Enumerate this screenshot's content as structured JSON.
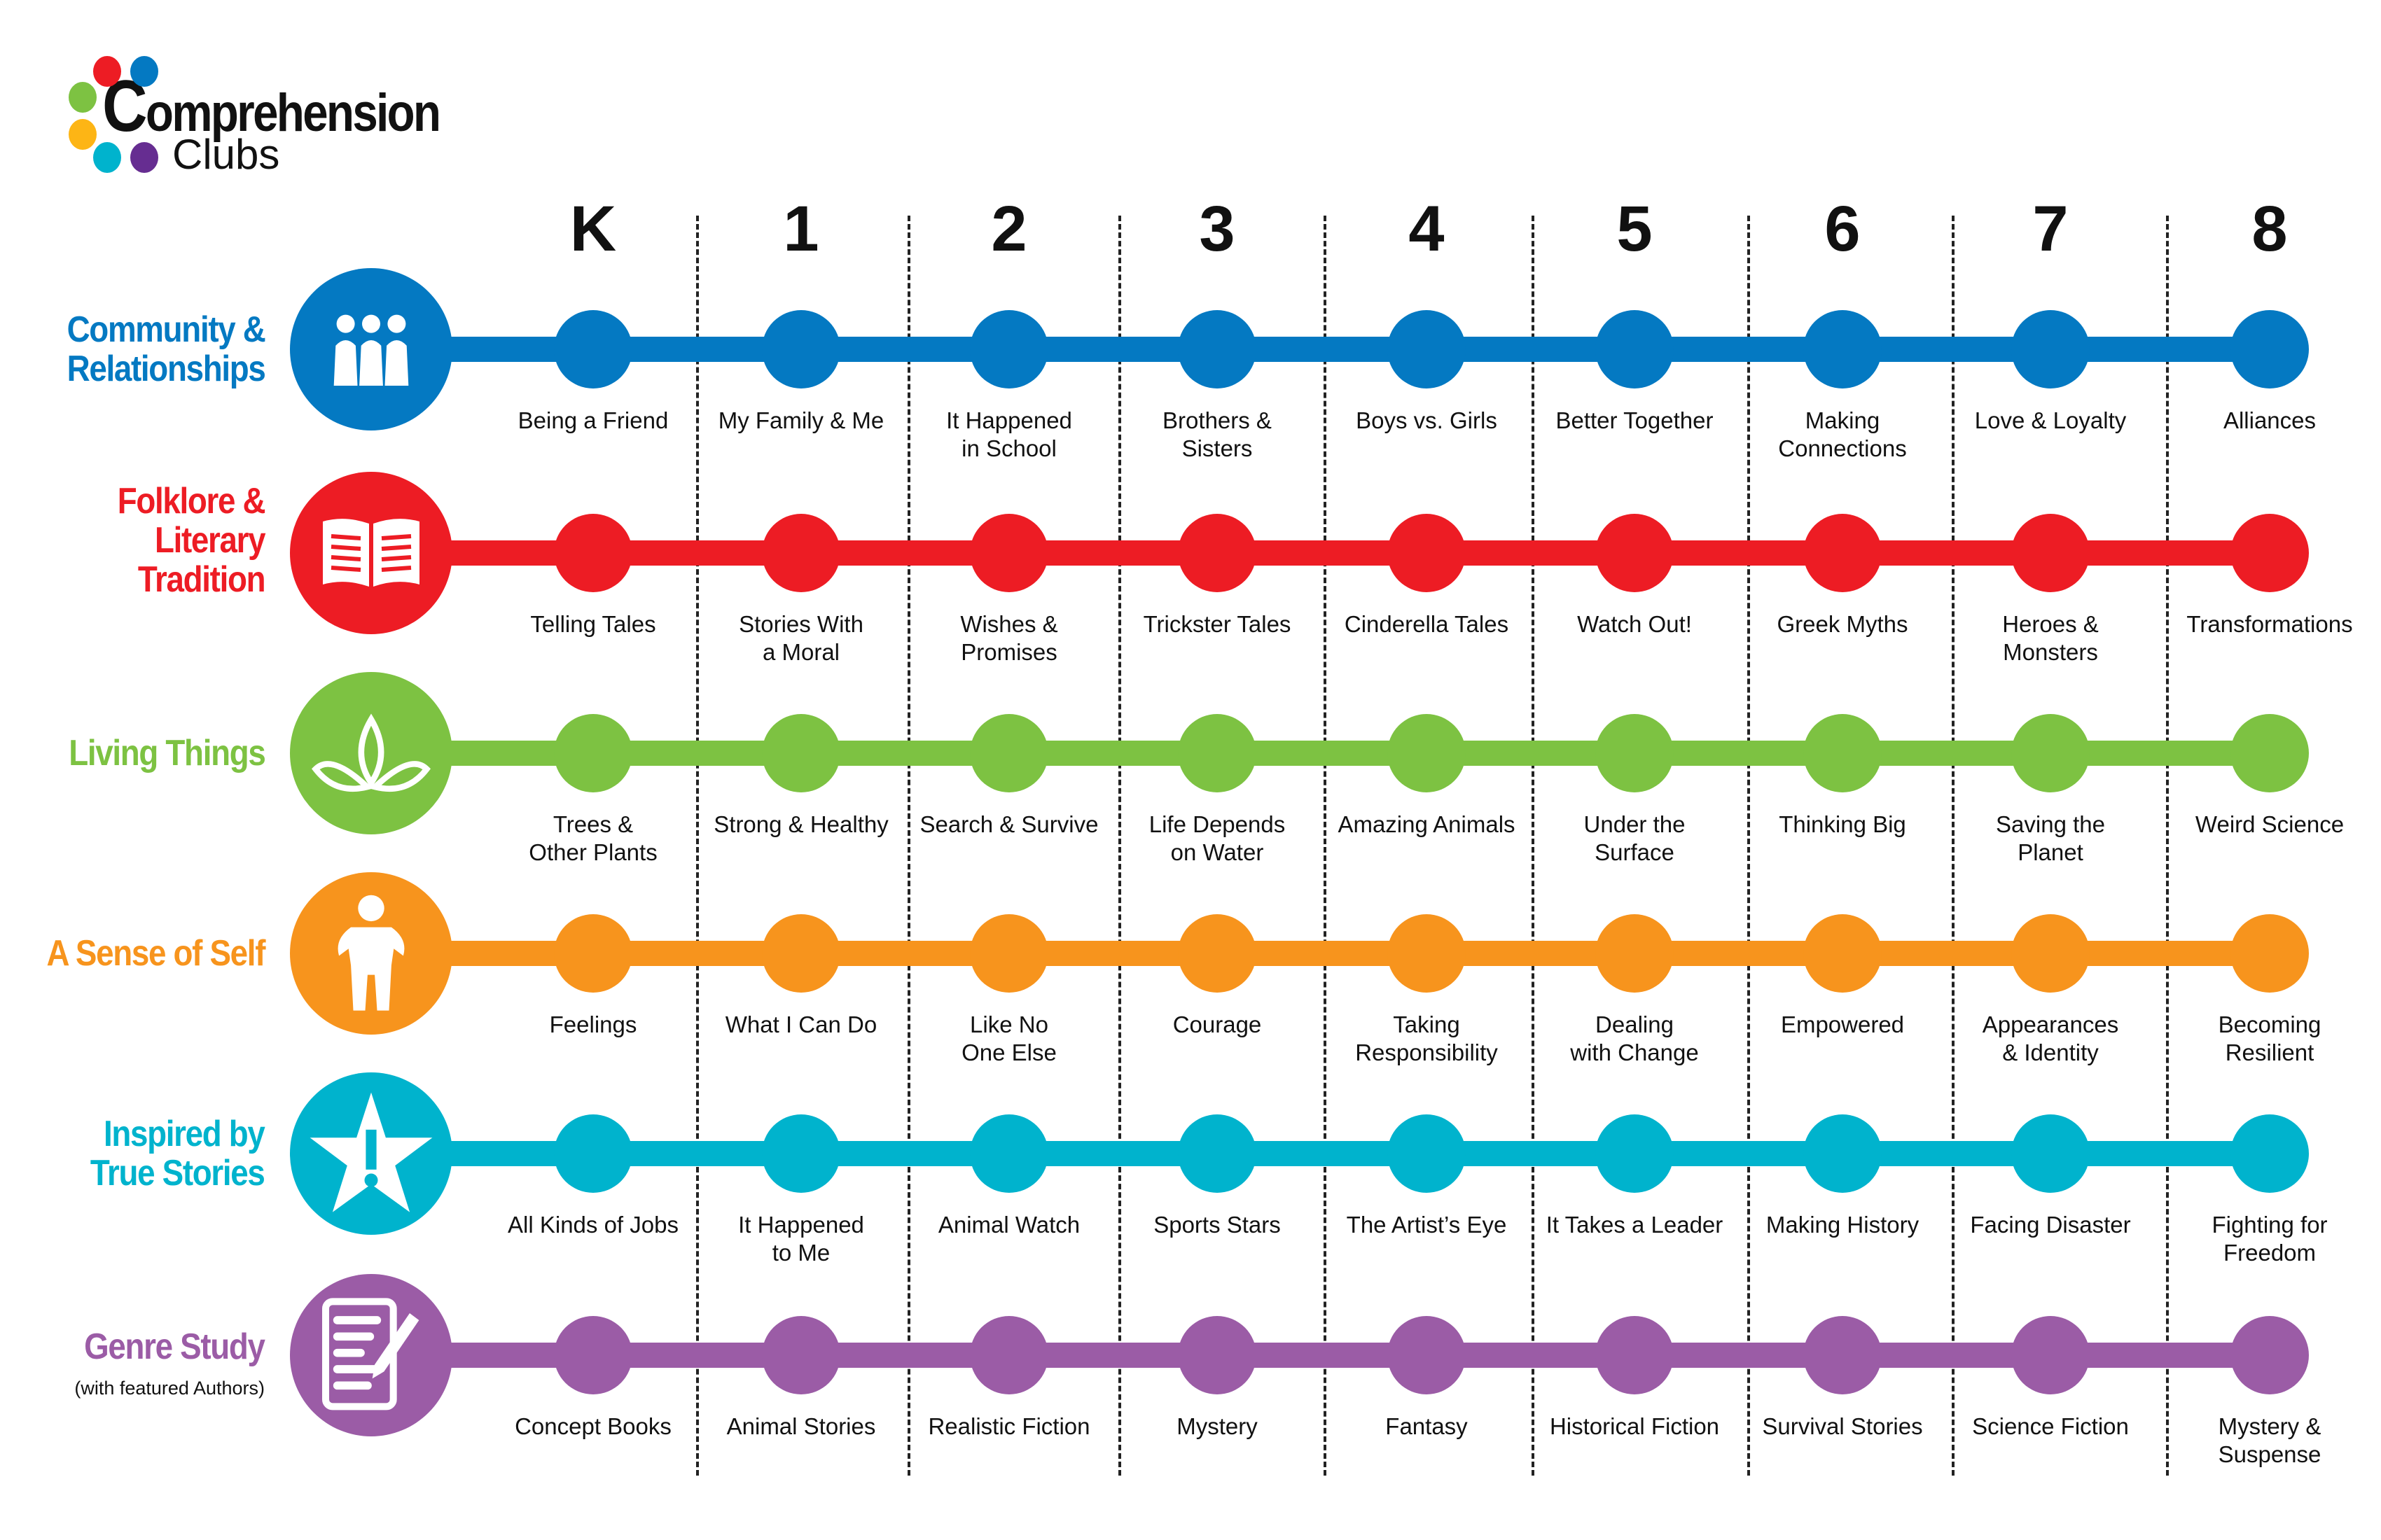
{
  "logo": {
    "title": "Comprehension",
    "title_first": "C",
    "title_rest": "omprehension",
    "subtitle": "Clubs",
    "dot_colors": [
      "#ed1c24",
      "#0479c2",
      "#7dc242",
      "#fdb515",
      "#00b3cd",
      "#662d91"
    ]
  },
  "grades": [
    "K",
    "1",
    "2",
    "3",
    "4",
    "5",
    "6",
    "7",
    "8"
  ],
  "rows": [
    {
      "category": "Community &\nRelationships",
      "color": "#0479c2",
      "icon": "people-icon",
      "topics": [
        "Being a Friend",
        "My Family & Me",
        "It Happened\nin School",
        "Brothers &\nSisters",
        "Boys vs. Girls",
        "Better Together",
        "Making\nConnections",
        "Love & Loyalty",
        "Alliances"
      ]
    },
    {
      "category": "Folklore &\nLiterary\nTradition",
      "color": "#ed1c24",
      "icon": "open-book-icon",
      "topics": [
        "Telling Tales",
        "Stories With\na Moral",
        "Wishes &\nPromises",
        "Trickster Tales",
        "Cinderella Tales",
        "Watch Out!",
        "Greek Myths",
        "Heroes &\nMonsters",
        "Transformations"
      ]
    },
    {
      "category": "Living Things",
      "color": "#7dc242",
      "icon": "leaves-icon",
      "topics": [
        "Trees &\nOther Plants",
        "Strong & Healthy",
        "Search & Survive",
        "Life Depends\non Water",
        "Amazing Animals",
        "Under the\nSurface",
        "Thinking Big",
        "Saving the\nPlanet",
        "Weird Science"
      ]
    },
    {
      "category": "A Sense of Self",
      "color": "#f7941d",
      "icon": "person-icon",
      "topics": [
        "Feelings",
        "What I Can Do",
        "Like No\nOne Else",
        "Courage",
        "Taking\nResponsibility",
        "Dealing\nwith Change",
        "Empowered",
        "Appearances\n& Identity",
        "Becoming\nResilient"
      ]
    },
    {
      "category": "Inspired by\nTrue Stories",
      "color": "#00b3cd",
      "icon": "star-exclamation-icon",
      "topics": [
        "All Kinds of Jobs",
        "It Happened\nto Me",
        "Animal Watch",
        "Sports Stars",
        "The Artist’s Eye",
        "It Takes a Leader",
        "Making History",
        "Facing Disaster",
        "Fighting for\nFreedom"
      ]
    },
    {
      "category": "Genre Study",
      "subcategory": "(with featured Authors)",
      "color": "#9b5ca6",
      "icon": "document-pen-icon",
      "topics": [
        "Concept Books",
        "Animal Stories",
        "Realistic Fiction",
        "Mystery",
        "Fantasy",
        "Historical Fiction",
        "Survival Stories",
        "Science Fiction",
        "Mystery &\nSuspense"
      ]
    }
  ]
}
